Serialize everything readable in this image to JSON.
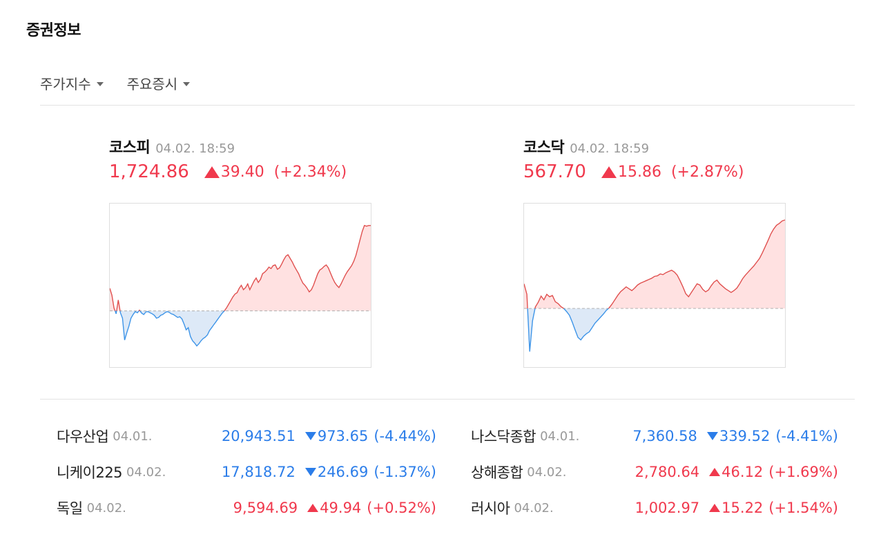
{
  "section_title": "증권정보",
  "tabs": [
    {
      "label": "주가지수"
    },
    {
      "label": "주요증시"
    }
  ],
  "indices": [
    {
      "name": "코스피",
      "time": "04.02. 18:59",
      "value": "1,724.86",
      "change": "39.40",
      "pct": "(+2.34%)",
      "direction": "up"
    },
    {
      "name": "코스닥",
      "time": "04.02. 18:59",
      "value": "567.70",
      "change": "15.86",
      "pct": "(+2.87%)",
      "direction": "up"
    }
  ],
  "colors": {
    "up": "#f0394d",
    "down": "#2b7de9",
    "up_fill": "#ffe1e1",
    "down_fill": "#dde9f7"
  },
  "icons": {
    "tab_caret": "caret-down-icon",
    "up": "triangle-up-icon",
    "down": "triangle-down-icon"
  },
  "chart_data": [
    {
      "type": "line",
      "series": [
        {
          "values": [
            0.62,
            0.43,
            0.08,
            -0.08,
            0.3,
            -0.05,
            -0.2,
            -0.8,
            -0.6,
            -0.42,
            -0.2,
            -0.1,
            -0.02,
            -0.05,
            0.02,
            -0.06,
            -0.1,
            -0.03,
            -0.02,
            -0.05,
            -0.08,
            -0.12,
            -0.2,
            -0.18,
            -0.12,
            -0.1,
            -0.05,
            -0.02,
            -0.04,
            -0.08,
            -0.1,
            -0.14,
            -0.18,
            -0.16,
            -0.22,
            -0.36,
            -0.52,
            -0.46,
            -0.7,
            -0.82,
            -0.88,
            -0.96,
            -0.9,
            -0.82,
            -0.76,
            -0.72,
            -0.66,
            -0.54,
            -0.46,
            -0.38,
            -0.3,
            -0.22,
            -0.14,
            -0.06,
            0.0,
            0.08,
            0.18,
            0.28,
            0.38,
            0.46,
            0.5,
            0.62,
            0.7,
            0.58,
            0.64,
            0.74,
            0.58,
            0.7,
            0.82,
            0.9,
            0.78,
            0.86,
            1.02,
            1.06,
            1.12,
            1.2,
            1.16,
            1.24,
            1.26,
            1.14,
            1.18,
            1.28,
            1.4,
            1.5,
            1.54,
            1.44,
            1.34,
            1.22,
            1.12,
            1.02,
            0.88,
            0.76,
            0.7,
            0.62,
            0.52,
            0.58,
            0.7,
            0.86,
            1.02,
            1.12,
            1.16,
            1.22,
            1.26,
            1.18,
            1.04,
            0.9,
            0.78,
            0.7,
            0.64,
            0.74,
            0.86,
            0.98,
            1.08,
            1.16,
            1.24,
            1.36,
            1.52,
            1.74,
            1.96,
            2.18,
            2.34,
            2.32,
            2.34,
            2.34
          ]
        }
      ],
      "baseline_y": 0,
      "ylim": [
        -1.2,
        2.6
      ]
    },
    {
      "type": "line",
      "series": [
        {
          "values": [
            0.8,
            0.46,
            -1.4,
            -0.4,
            0.05,
            0.2,
            0.4,
            0.28,
            0.46,
            0.38,
            0.42,
            0.22,
            0.16,
            0.06,
            0.0,
            -0.1,
            -0.22,
            -0.44,
            -0.7,
            -0.94,
            -1.02,
            -0.9,
            -0.82,
            -0.76,
            -0.62,
            -0.48,
            -0.38,
            -0.28,
            -0.18,
            -0.06,
            0.02,
            0.14,
            0.28,
            0.42,
            0.54,
            0.62,
            0.7,
            0.64,
            0.58,
            0.66,
            0.76,
            0.82,
            0.86,
            0.9,
            0.94,
            0.98,
            1.04,
            1.06,
            1.12,
            1.1,
            1.16,
            1.2,
            1.24,
            1.18,
            1.08,
            0.9,
            0.7,
            0.48,
            0.38,
            0.52,
            0.66,
            0.8,
            0.76,
            0.62,
            0.54,
            0.6,
            0.74,
            0.86,
            0.92,
            0.8,
            0.72,
            0.64,
            0.58,
            0.52,
            0.58,
            0.66,
            0.8,
            0.96,
            1.08,
            1.18,
            1.28,
            1.38,
            1.5,
            1.62,
            1.8,
            2.0,
            2.2,
            2.42,
            2.58,
            2.7,
            2.76,
            2.84,
            2.87
          ]
        }
      ],
      "baseline_y": 0,
      "ylim": [
        -1.5,
        3.0
      ]
    }
  ],
  "markets": [
    {
      "name": "다우산업",
      "date": "04.01.",
      "value": "20,943.51",
      "change": "973.65",
      "pct": "(-4.44%)",
      "direction": "down"
    },
    {
      "name": "나스닥종합",
      "date": "04.01.",
      "value": "7,360.58",
      "change": "339.52",
      "pct": "(-4.41%)",
      "direction": "down"
    },
    {
      "name": "니케이225",
      "date": "04.02.",
      "value": "17,818.72",
      "change": "246.69",
      "pct": "(-1.37%)",
      "direction": "down"
    },
    {
      "name": "상해종합",
      "date": "04.02.",
      "value": "2,780.64",
      "change": "46.12",
      "pct": "(+1.69%)",
      "direction": "up"
    },
    {
      "name": "독일",
      "date": "04.02.",
      "value": "9,594.69",
      "change": "49.94",
      "pct": "(+0.52%)",
      "direction": "up"
    },
    {
      "name": "러시아",
      "date": "04.02.",
      "value": "1,002.97",
      "change": "15.22",
      "pct": "(+1.54%)",
      "direction": "up"
    }
  ]
}
